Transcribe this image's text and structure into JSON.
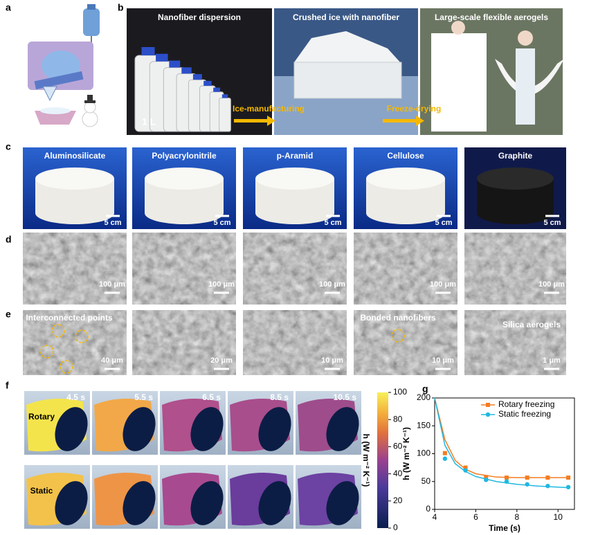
{
  "panel_labels": [
    "a",
    "b",
    "c",
    "d",
    "e",
    "f",
    "g"
  ],
  "b": {
    "captions": [
      "Nanofiber dispersion",
      "Crushed ice with nanofiber",
      "Large-scale flexible aerogels"
    ],
    "bottle_label": "1 L",
    "arrows": [
      "Ice-manufacturing",
      "Freeze-drying"
    ]
  },
  "c": {
    "materials": [
      "Aluminosilicate",
      "Polyacrylonitrile",
      "p-Aramid",
      "Cellulose",
      "Graphite"
    ],
    "scale_bars": [
      "5 cm",
      "5 cm",
      "5 cm",
      "5 cm",
      "5 cm"
    ]
  },
  "d": {
    "scale_bars": [
      "100 μm",
      "100 μm",
      "100 μm",
      "100 μm",
      "100 μm"
    ]
  },
  "e": {
    "labels": [
      "Interconnected points",
      "Bonded nanofibers",
      "Silica aerogels"
    ],
    "scale_bars": [
      "40 μm",
      "20 μm",
      "10 μm",
      "10 μm",
      "1 μm"
    ]
  },
  "f": {
    "times": [
      "4.5 s",
      "5.5 s",
      "6.5 s",
      "8.5 s",
      "10.5 s"
    ],
    "rows": [
      "Rotary",
      "Static"
    ],
    "colorbar_ticks": [
      0,
      20,
      40,
      60,
      80,
      100
    ],
    "colorbar_label": "h (W m⁻² K⁻¹)"
  },
  "chart_data": {
    "type": "scatter",
    "xlabel": "Time (s)",
    "ylabel": "h (W m⁻² K⁻¹)",
    "xlim": [
      4,
      10.8
    ],
    "ylim": [
      0,
      200
    ],
    "xticks": [
      4,
      6,
      8,
      10
    ],
    "yticks": [
      0,
      50,
      100,
      150,
      200
    ],
    "legend": "upper right",
    "series": [
      {
        "name": "Rotary freezing",
        "color": "#f47c20",
        "marker": "square",
        "x": [
          4.5,
          5.5,
          6.5,
          7.5,
          8.5,
          9.5,
          10.5
        ],
        "values": [
          101,
          75,
          58,
          57,
          57,
          57,
          57
        ],
        "fit_x": [
          4,
          4.5,
          5,
          5.5,
          6,
          7,
          8,
          9,
          10.5
        ],
        "fit_values": [
          200,
          125,
          88,
          72,
          64,
          58,
          57,
          57,
          57
        ]
      },
      {
        "name": "Static freezing",
        "color": "#20b8e0",
        "marker": "circle",
        "x": [
          4.5,
          5.5,
          6.5,
          7.5,
          8.5,
          9.5,
          10.5
        ],
        "values": [
          91,
          70,
          53,
          50,
          45,
          42,
          40
        ],
        "fit_x": [
          4,
          4.5,
          5,
          5.5,
          6,
          7,
          8,
          9,
          10.5
        ],
        "fit_values": [
          200,
          115,
          82,
          68,
          59,
          50,
          45,
          42,
          39
        ]
      }
    ]
  }
}
